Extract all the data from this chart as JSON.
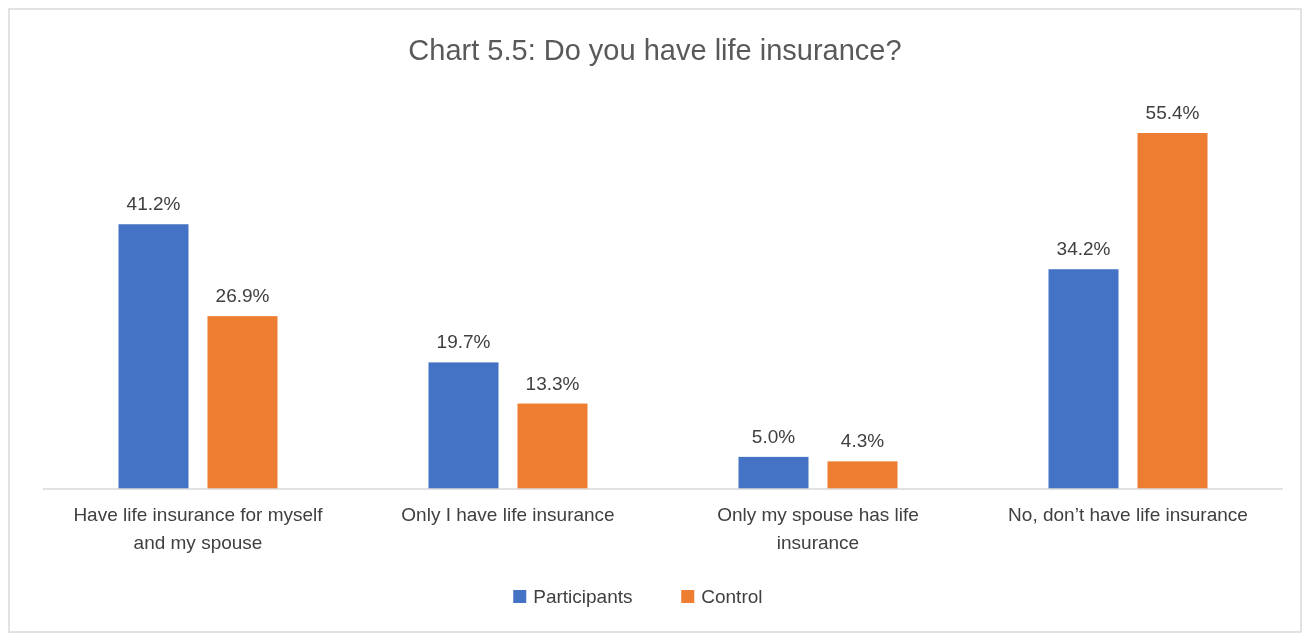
{
  "chart_data": {
    "type": "bar",
    "title": "Chart 5.5: Do you have life insurance?",
    "categories": [
      "Have life insurance for myself and my spouse",
      "Only I have life insurance",
      "Only my spouse has life insurance",
      "No, don’t have life insurance"
    ],
    "series": [
      {
        "name": "Participants",
        "color": "#4472c4",
        "values": [
          41.2,
          19.7,
          5.0,
          34.2
        ],
        "value_labels": [
          "41.2%",
          "19.7%",
          "5.0%",
          "34.2%"
        ]
      },
      {
        "name": "Control",
        "color": "#ed7d31",
        "values": [
          26.9,
          13.3,
          4.3,
          55.4
        ],
        "value_labels": [
          "26.9%",
          "13.3%",
          "4.3%",
          "55.4%"
        ]
      }
    ],
    "legend": "bottom"
  }
}
